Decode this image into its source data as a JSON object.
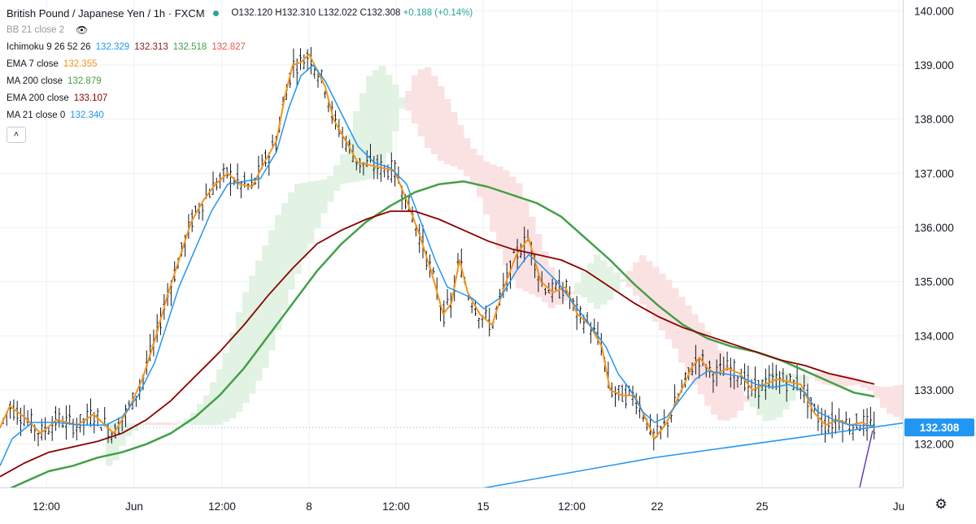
{
  "header": {
    "symbol": "British Pound / Japanese Yen",
    "interval": "1h",
    "exchange": "FXCM",
    "ohlc": {
      "O": "O132.120",
      "H": "H132.310",
      "L": "L132.022",
      "C": "C132.308",
      "change": "+0.188 (+0.14%)"
    }
  },
  "indicators": {
    "bb": {
      "label": "BB 21 close 2"
    },
    "ichimoku": {
      "label": "Ichimoku 9 26 52 26",
      "values": [
        "132.329",
        "132.313",
        "132.518",
        "132.827"
      ]
    },
    "ema7": {
      "label": "EMA 7 close",
      "value": "132.355"
    },
    "ma200": {
      "label": "MA 200 close",
      "value": "132.879"
    },
    "ema200": {
      "label": "EMA 200 close",
      "value": "133.107"
    },
    "ma21": {
      "label": "MA 21 close 0",
      "value": "132.340"
    }
  },
  "colors": {
    "up": "#131722",
    "down": "#131722",
    "ema7": "#f7931a",
    "ma21": "#2196f3",
    "ma200": "#43a047",
    "ema200": "#8b0000",
    "trendline": "#2196f3",
    "purple": "#673ab7",
    "cloud_bull": "#e2f2e3",
    "cloud_bear": "#fbe2e2",
    "lagging": "#43a047",
    "base": "#8b1a1a",
    "price_tag": "#2196f3"
  },
  "chart_data": {
    "type": "line",
    "title": "British Pound / Japanese Yen · 1h · FXCM",
    "y_axis": {
      "ticks": [
        132,
        133,
        134,
        135,
        136,
        137,
        138,
        139,
        140
      ],
      "tick_labels": [
        "132.000",
        "133.000",
        "134.000",
        "135.000",
        "136.000",
        "137.000",
        "138.000",
        "139.000",
        "140.000"
      ],
      "range": [
        131.2,
        140.2
      ],
      "position": "right"
    },
    "x_axis": {
      "labels": [
        "12:00",
        "Jun",
        "12:00",
        "8",
        "12:00",
        "15",
        "12:00",
        "22",
        "25",
        "Ju"
      ]
    },
    "current_price": "132.308",
    "grid": true,
    "series": [
      {
        "name": "EMA 7 close",
        "points": [
          [
            0,
            132.3
          ],
          [
            12,
            132.7
          ],
          [
            30,
            132.5
          ],
          [
            50,
            132.2
          ],
          [
            70,
            132.45
          ],
          [
            95,
            132.35
          ],
          [
            115,
            132.55
          ],
          [
            140,
            132.2
          ],
          [
            160,
            132.7
          ],
          [
            175,
            133.2
          ],
          [
            190,
            133.9
          ],
          [
            205,
            134.7
          ],
          [
            220,
            135.4
          ],
          [
            235,
            136.1
          ],
          [
            250,
            136.5
          ],
          [
            265,
            136.8
          ],
          [
            280,
            137.0
          ],
          [
            295,
            136.8
          ],
          [
            310,
            136.75
          ],
          [
            325,
            137.2
          ],
          [
            340,
            137.6
          ],
          [
            350,
            138.4
          ],
          [
            360,
            139.0
          ],
          [
            370,
            139.05
          ],
          [
            380,
            139.2
          ],
          [
            390,
            138.9
          ],
          [
            400,
            138.6
          ],
          [
            410,
            138.0
          ],
          [
            425,
            137.6
          ],
          [
            440,
            137.2
          ],
          [
            455,
            137.15
          ],
          [
            470,
            137.1
          ],
          [
            485,
            137.05
          ],
          [
            500,
            136.5
          ],
          [
            515,
            135.9
          ],
          [
            530,
            135.2
          ],
          [
            545,
            134.4
          ],
          [
            555,
            134.6
          ],
          [
            565,
            135.4
          ],
          [
            575,
            134.8
          ],
          [
            590,
            134.4
          ],
          [
            605,
            134.2
          ],
          [
            620,
            134.9
          ],
          [
            635,
            135.5
          ],
          [
            650,
            135.8
          ],
          [
            665,
            135.0
          ],
          [
            680,
            134.8
          ],
          [
            695,
            134.9
          ],
          [
            710,
            134.4
          ],
          [
            725,
            134.2
          ],
          [
            740,
            133.8
          ],
          [
            750,
            133.0
          ],
          [
            765,
            132.9
          ],
          [
            780,
            132.9
          ],
          [
            790,
            132.6
          ],
          [
            805,
            132.1
          ],
          [
            820,
            132.4
          ],
          [
            835,
            132.9
          ],
          [
            850,
            133.4
          ],
          [
            860,
            133.6
          ],
          [
            870,
            133.4
          ],
          [
            880,
            133.3
          ],
          [
            895,
            133.4
          ],
          [
            910,
            133.3
          ],
          [
            925,
            133.0
          ],
          [
            940,
            133.1
          ],
          [
            955,
            133.2
          ],
          [
            970,
            133.15
          ],
          [
            985,
            133.1
          ],
          [
            1000,
            132.6
          ],
          [
            1015,
            132.35
          ],
          [
            1030,
            132.45
          ],
          [
            1045,
            132.35
          ],
          [
            1060,
            132.4
          ],
          [
            1075,
            132.3
          ]
        ]
      },
      {
        "name": "MA 21 close 0",
        "points": [
          [
            0,
            131.6
          ],
          [
            15,
            132.1
          ],
          [
            40,
            132.4
          ],
          [
            70,
            132.4
          ],
          [
            100,
            132.35
          ],
          [
            130,
            132.35
          ],
          [
            150,
            132.5
          ],
          [
            170,
            132.9
          ],
          [
            190,
            133.5
          ],
          [
            205,
            134.2
          ],
          [
            220,
            134.9
          ],
          [
            240,
            135.6
          ],
          [
            260,
            136.3
          ],
          [
            280,
            136.8
          ],
          [
            300,
            136.85
          ],
          [
            320,
            136.9
          ],
          [
            340,
            137.4
          ],
          [
            355,
            138.2
          ],
          [
            370,
            138.8
          ],
          [
            385,
            139.0
          ],
          [
            400,
            138.7
          ],
          [
            420,
            138.1
          ],
          [
            440,
            137.5
          ],
          [
            460,
            137.2
          ],
          [
            480,
            137.1
          ],
          [
            500,
            136.8
          ],
          [
            515,
            136.2
          ],
          [
            535,
            135.4
          ],
          [
            550,
            134.9
          ],
          [
            565,
            134.8
          ],
          [
            580,
            134.7
          ],
          [
            595,
            134.5
          ],
          [
            615,
            134.7
          ],
          [
            635,
            135.2
          ],
          [
            650,
            135.5
          ],
          [
            665,
            135.3
          ],
          [
            685,
            135.0
          ],
          [
            705,
            134.6
          ],
          [
            725,
            134.2
          ],
          [
            745,
            133.8
          ],
          [
            760,
            133.3
          ],
          [
            775,
            133.0
          ],
          [
            790,
            132.6
          ],
          [
            805,
            132.4
          ],
          [
            820,
            132.5
          ],
          [
            840,
            132.9
          ],
          [
            855,
            133.2
          ],
          [
            870,
            133.35
          ],
          [
            890,
            133.3
          ],
          [
            910,
            133.25
          ],
          [
            930,
            133.1
          ],
          [
            950,
            133.05
          ],
          [
            970,
            133.1
          ],
          [
            990,
            132.95
          ],
          [
            1005,
            132.6
          ],
          [
            1025,
            132.45
          ],
          [
            1045,
            132.35
          ],
          [
            1075,
            132.34
          ]
        ]
      },
      {
        "name": "MA 200 close",
        "points": [
          [
            0,
            131.1
          ],
          [
            30,
            131.3
          ],
          [
            60,
            131.5
          ],
          [
            90,
            131.6
          ],
          [
            120,
            131.75
          ],
          [
            150,
            131.85
          ],
          [
            180,
            132.0
          ],
          [
            210,
            132.2
          ],
          [
            240,
            132.5
          ],
          [
            270,
            132.9
          ],
          [
            300,
            133.4
          ],
          [
            330,
            134.0
          ],
          [
            360,
            134.6
          ],
          [
            390,
            135.2
          ],
          [
            420,
            135.7
          ],
          [
            450,
            136.1
          ],
          [
            480,
            136.4
          ],
          [
            510,
            136.65
          ],
          [
            540,
            136.8
          ],
          [
            570,
            136.85
          ],
          [
            600,
            136.75
          ],
          [
            630,
            136.6
          ],
          [
            660,
            136.45
          ],
          [
            690,
            136.2
          ],
          [
            720,
            135.8
          ],
          [
            750,
            135.4
          ],
          [
            780,
            134.95
          ],
          [
            810,
            134.55
          ],
          [
            840,
            134.2
          ],
          [
            870,
            133.95
          ],
          [
            900,
            133.8
          ],
          [
            930,
            133.7
          ],
          [
            960,
            133.55
          ],
          [
            990,
            133.35
          ],
          [
            1020,
            133.15
          ],
          [
            1050,
            132.95
          ],
          [
            1075,
            132.88
          ]
        ]
      },
      {
        "name": "EMA 200 close",
        "points": [
          [
            0,
            131.4
          ],
          [
            30,
            131.65
          ],
          [
            60,
            131.85
          ],
          [
            90,
            131.95
          ],
          [
            120,
            132.05
          ],
          [
            150,
            132.2
          ],
          [
            180,
            132.45
          ],
          [
            210,
            132.8
          ],
          [
            240,
            133.25
          ],
          [
            270,
            133.7
          ],
          [
            300,
            134.2
          ],
          [
            330,
            134.75
          ],
          [
            360,
            135.25
          ],
          [
            390,
            135.7
          ],
          [
            420,
            135.95
          ],
          [
            450,
            136.15
          ],
          [
            480,
            136.3
          ],
          [
            510,
            136.3
          ],
          [
            540,
            136.15
          ],
          [
            570,
            135.95
          ],
          [
            600,
            135.75
          ],
          [
            630,
            135.6
          ],
          [
            660,
            135.5
          ],
          [
            690,
            135.4
          ],
          [
            720,
            135.2
          ],
          [
            750,
            134.9
          ],
          [
            780,
            134.6
          ],
          [
            810,
            134.35
          ],
          [
            840,
            134.15
          ],
          [
            870,
            134.0
          ],
          [
            900,
            133.85
          ],
          [
            930,
            133.7
          ],
          [
            960,
            133.55
          ],
          [
            990,
            133.45
          ],
          [
            1020,
            133.3
          ],
          [
            1050,
            133.2
          ],
          [
            1075,
            133.11
          ]
        ]
      },
      {
        "name": "Trendline",
        "points": [
          [
            580,
            131.15
          ],
          [
            805,
            131.75
          ],
          [
            1115,
            132.4
          ]
        ]
      }
    ]
  }
}
